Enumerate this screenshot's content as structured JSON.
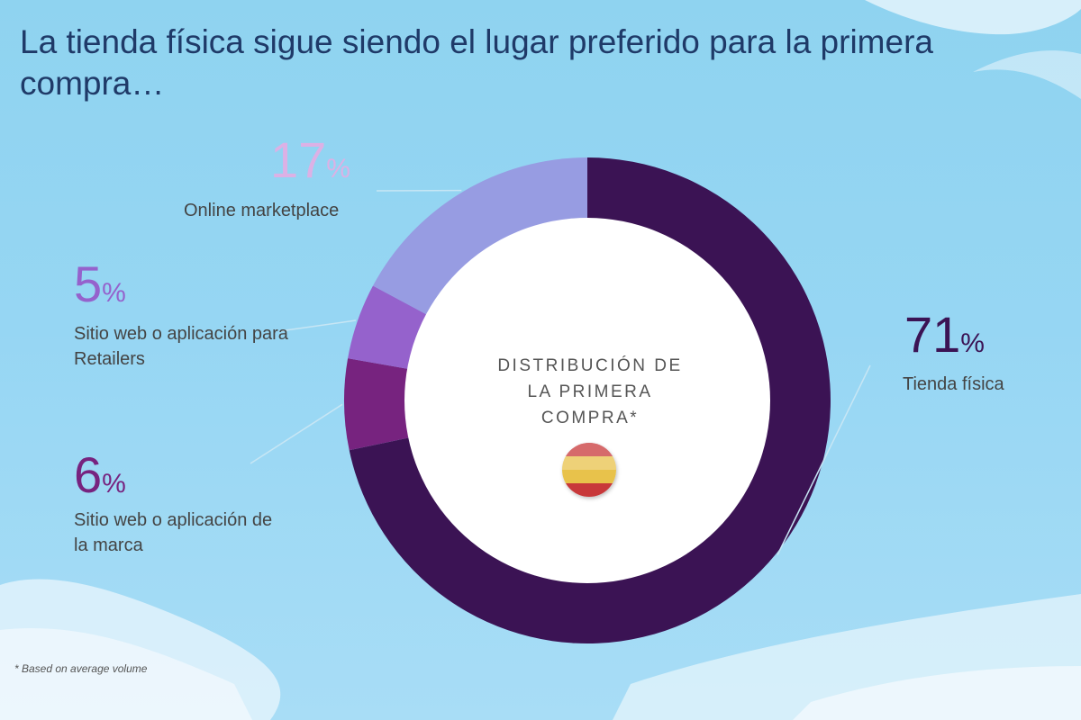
{
  "title": "La tienda física sigue siendo el lugar preferido para la primera compra…",
  "center_label_lines": [
    "DISTRIBUCIÓN DE",
    "LA PRIMERA",
    "COMPRA*"
  ],
  "center_icon": "spain-flag-icon",
  "footnote": "* Based on average volume",
  "percent_sign": "%",
  "chart_data": {
    "type": "pie",
    "donut": true,
    "categories": [
      "Tienda física",
      "Sitio web o aplicación de la marca",
      "Sitio web o aplicación para Retailers",
      "Online marketplace"
    ],
    "values": [
      71,
      6,
      5,
      17
    ],
    "value_labels": [
      "71",
      "6",
      "5",
      "17"
    ],
    "colors": [
      "#3b1354",
      "#77237f",
      "#9562cc",
      "#979ce2"
    ],
    "start": "12 o'clock",
    "direction": "clockwise"
  }
}
